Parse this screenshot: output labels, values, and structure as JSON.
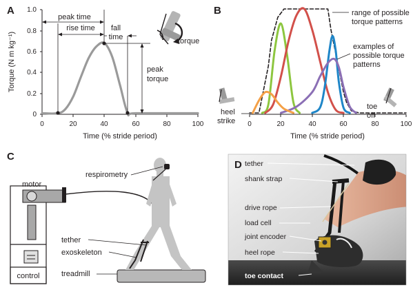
{
  "panel_a": {
    "letter": "A",
    "ylabel": "Torque (N m kg⁻¹)",
    "xlabel": "Time (% stride period)",
    "yticks": [
      "0",
      "0.2",
      "0.4",
      "0.6",
      "0.8",
      "1.0"
    ],
    "xticks": [
      "0",
      "20",
      "40",
      "60",
      "80",
      "100"
    ],
    "annotations": {
      "peak_time": "peak time",
      "rise_time": "rise time",
      "fall_time_1": "fall",
      "fall_time_2": "time",
      "peak_torque_1": "peak",
      "peak_torque_2": "torque",
      "torque": "torque"
    }
  },
  "panel_b": {
    "letter": "B",
    "xlabel": "Time (% stride period)",
    "xticks": [
      "0",
      "20",
      "40",
      "60",
      "80",
      "100"
    ],
    "annotations": {
      "range_1": "range of possible",
      "range_2": "torque patterns",
      "examples_1": "examples of",
      "examples_2": "possible torque",
      "examples_3": "patterns",
      "heel_1": "heel",
      "heel_2": "strike",
      "toe_1": "toe",
      "toe_2": "off"
    }
  },
  "panel_c": {
    "letter": "C",
    "labels": {
      "motor": "motor",
      "respirometry": "respirometry",
      "tether": "tether",
      "exoskeleton": "exoskeleton",
      "treadmill": "treadmill",
      "control": "control"
    }
  },
  "panel_d": {
    "letter": "D",
    "labels": {
      "tether": "tether",
      "shank_strap": "shank strap",
      "drive_rope": "drive rope",
      "load_cell": "load cell",
      "joint_encoder": "joint encoder",
      "heel_rope": "heel rope",
      "toe_contact": "toe contact"
    }
  },
  "colors": {
    "gray_curve": "#9a9a9a",
    "green": "#8dc63f",
    "red": "#d2504a",
    "blue": "#1f86c8",
    "purple": "#8b6fb5",
    "orange": "#f4a047",
    "dark": "#231f20"
  },
  "chart_data": [
    {
      "type": "line",
      "panel": "A",
      "xlim": [
        0,
        100
      ],
      "ylim": [
        0,
        1.0
      ],
      "series": [
        {
          "x": [
            0,
            10,
            15,
            20,
            25,
            30,
            35,
            40,
            45,
            50,
            55,
            60,
            100
          ],
          "y": [
            0.01,
            0.01,
            0.05,
            0.17,
            0.36,
            0.54,
            0.65,
            0.68,
            0.55,
            0.28,
            0.01,
            0.01,
            0.01
          ]
        }
      ]
    },
    {
      "type": "line",
      "panel": "B",
      "xlim": [
        0,
        100
      ],
      "series": [
        {
          "x": [
            0,
            6,
            12,
            14,
            18,
            22,
            26,
            30,
            34,
            36,
            40,
            44,
            48,
            50,
            52,
            56,
            60,
            62,
            65,
            70,
            100
          ],
          "y": [
            0,
            0,
            0.45,
            0.7,
            0.92,
            1.0,
            1.0,
            1.0,
            1.0,
            1.0,
            1.0,
            1.0,
            1.0,
            1.0,
            0.8,
            0.5,
            0.2,
            0.1,
            0.02,
            0,
            0
          ]
        },
        {
          "x": [
            8,
            12,
            16,
            20,
            24,
            28,
            32
          ],
          "y": [
            0,
            0.08,
            0.6,
            0.86,
            0.55,
            0.1,
            0
          ]
        },
        {
          "x": [
            10,
            15,
            20,
            25,
            30,
            35,
            40,
            45,
            50,
            55,
            60
          ],
          "y": [
            0,
            0.08,
            0.35,
            0.7,
            0.94,
            1.0,
            0.8,
            0.5,
            0.2,
            0.03,
            0
          ]
        },
        {
          "x": [
            40,
            45,
            48,
            51,
            53,
            55,
            57,
            60,
            64
          ],
          "y": [
            0,
            0.05,
            0.25,
            0.6,
            0.74,
            0.6,
            0.3,
            0.05,
            0
          ]
        },
        {
          "x": [
            20,
            30,
            40,
            45,
            50,
            54,
            57,
            60,
            64,
            68
          ],
          "y": [
            0,
            0.06,
            0.2,
            0.35,
            0.48,
            0.52,
            0.44,
            0.25,
            0.06,
            0
          ]
        },
        {
          "x": [
            2,
            6,
            10,
            14,
            18,
            22,
            28
          ],
          "y": [
            0,
            0.12,
            0.2,
            0.18,
            0.1,
            0.04,
            0
          ]
        }
      ]
    }
  ]
}
